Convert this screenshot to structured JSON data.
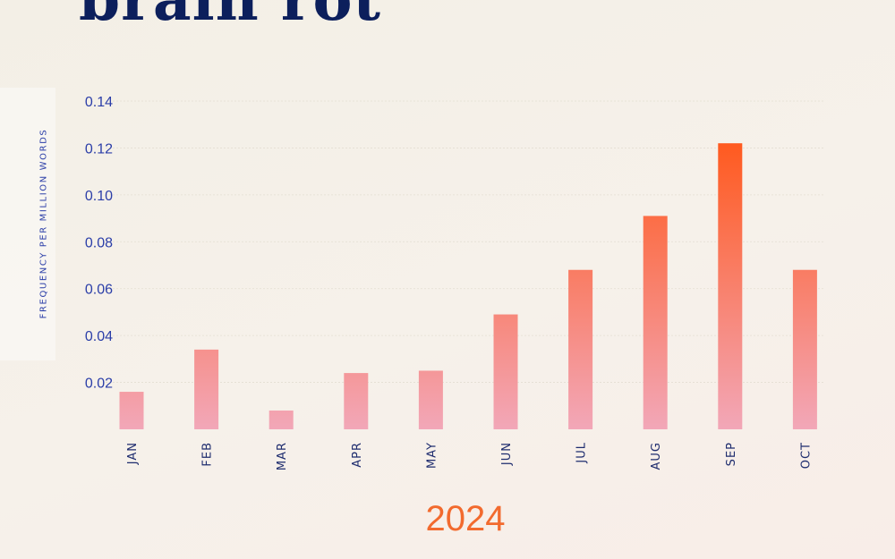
{
  "page": {
    "title": "brain rot"
  },
  "chart_data": {
    "type": "bar",
    "categories": [
      "JAN",
      "FEB",
      "MAR",
      "APR",
      "MAY",
      "JUN",
      "JUL",
      "AUG",
      "SEP",
      "OCT"
    ],
    "values": [
      0.016,
      0.034,
      0.008,
      0.024,
      0.025,
      0.049,
      0.068,
      0.091,
      0.122,
      0.068
    ],
    "ylabel": "FREQUENCY PER MILLION WORDS",
    "xlabel": "2024",
    "yticks": [
      "0.02",
      "0.04",
      "0.06",
      "0.08",
      "0.10",
      "0.12",
      "0.14"
    ],
    "ylim": [
      0,
      0.14
    ],
    "grid": true,
    "colors": {
      "low": "#f2a7b8",
      "high": "#ff5a1f",
      "title": "#0c1f5c",
      "axis_text": "#2b3ea8",
      "year": "#f26a2e"
    }
  }
}
